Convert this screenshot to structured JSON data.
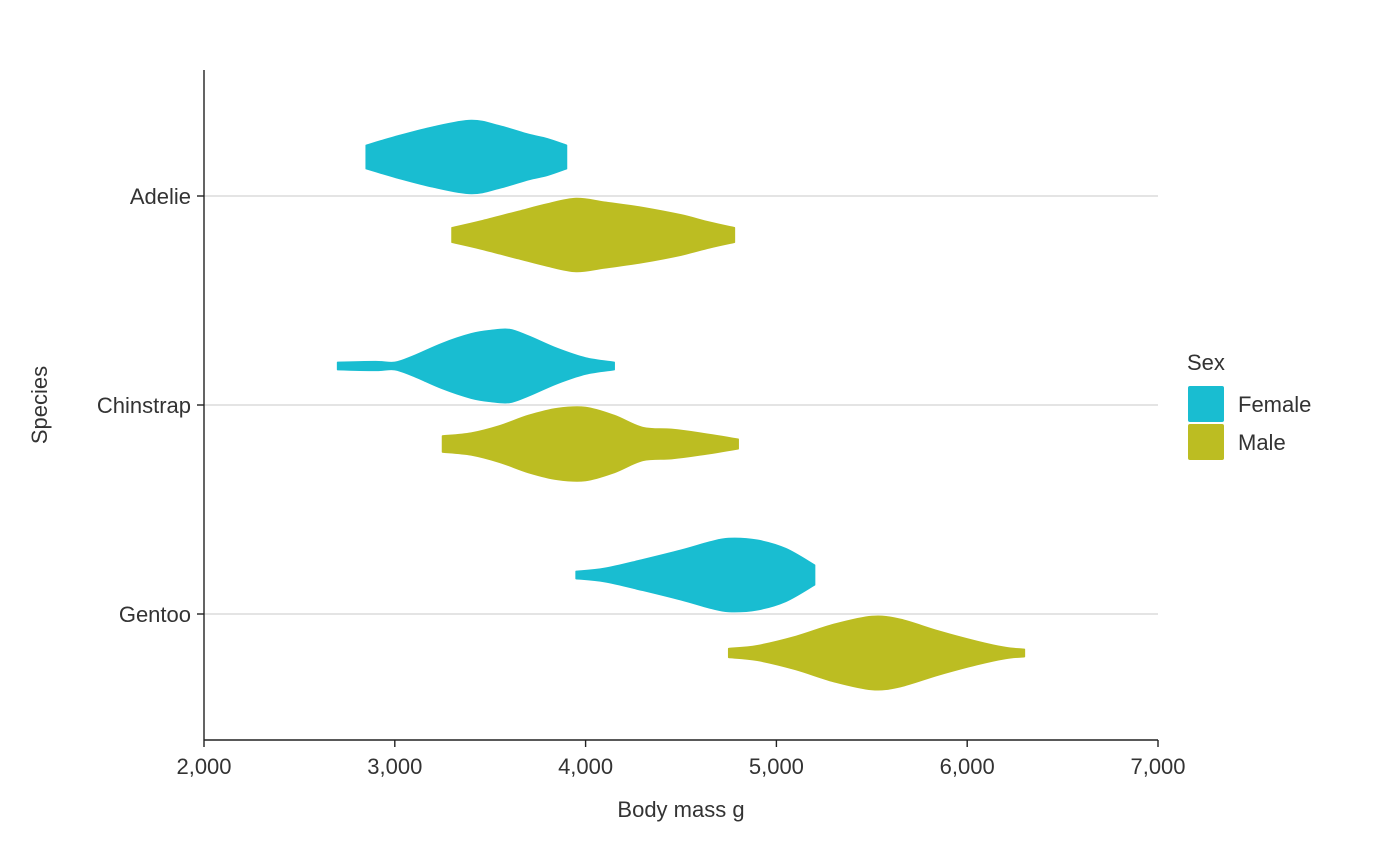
{
  "chart_data": {
    "type": "violin",
    "orientation": "horizontal",
    "xlabel": "Body mass g",
    "ylabel": "Species",
    "xlim": [
      2000,
      7000
    ],
    "x_ticks": [
      2000,
      3000,
      4000,
      5000,
      6000,
      7000
    ],
    "x_tick_labels": [
      "2,000",
      "3,000",
      "4,000",
      "5,000",
      "6,000",
      "7,000"
    ],
    "categories": [
      "Adelie",
      "Chinstrap",
      "Gentoo"
    ],
    "grid": "horizontal major gridlines",
    "legend": {
      "title": "Sex",
      "position": "right",
      "entries": [
        {
          "label": "Female",
          "color": "#19BDD1"
        },
        {
          "label": "Male",
          "color": "#BCBD22"
        }
      ]
    },
    "series": [
      {
        "name": "Female",
        "color": "#19BDD1",
        "violins": [
          {
            "category": "Adelie",
            "min": 2850,
            "max": 3900,
            "profile": [
              [
                2850,
                0.32
              ],
              [
                3000,
                0.55
              ],
              [
                3200,
                0.82
              ],
              [
                3400,
                1.0
              ],
              [
                3550,
                0.85
              ],
              [
                3700,
                0.62
              ],
              [
                3800,
                0.5
              ],
              [
                3900,
                0.32
              ]
            ]
          },
          {
            "category": "Chinstrap",
            "min": 2700,
            "max": 4150,
            "profile": [
              [
                2700,
                0.1
              ],
              [
                2900,
                0.12
              ],
              [
                3000,
                0.1
              ],
              [
                3100,
                0.28
              ],
              [
                3250,
                0.62
              ],
              [
                3400,
                0.88
              ],
              [
                3500,
                0.97
              ],
              [
                3600,
                1.0
              ],
              [
                3700,
                0.82
              ],
              [
                3850,
                0.48
              ],
              [
                4000,
                0.22
              ],
              [
                4150,
                0.1
              ]
            ]
          },
          {
            "category": "Gentoo",
            "min": 3950,
            "max": 5200,
            "profile": [
              [
                3950,
                0.1
              ],
              [
                4100,
                0.18
              ],
              [
                4300,
                0.42
              ],
              [
                4500,
                0.68
              ],
              [
                4650,
                0.9
              ],
              [
                4750,
                1.0
              ],
              [
                4900,
                0.95
              ],
              [
                5050,
                0.72
              ],
              [
                5200,
                0.27
              ]
            ]
          }
        ]
      },
      {
        "name": "Male",
        "color": "#BCBD22",
        "violins": [
          {
            "category": "Adelie",
            "min": 3300,
            "max": 4780,
            "profile": [
              [
                3300,
                0.2
              ],
              [
                3450,
                0.38
              ],
              [
                3650,
                0.65
              ],
              [
                3800,
                0.85
              ],
              [
                3950,
                1.0
              ],
              [
                4100,
                0.9
              ],
              [
                4300,
                0.75
              ],
              [
                4500,
                0.55
              ],
              [
                4650,
                0.35
              ],
              [
                4780,
                0.2
              ]
            ]
          },
          {
            "category": "Chinstrap",
            "min": 3250,
            "max": 4800,
            "profile": [
              [
                3250,
                0.22
              ],
              [
                3400,
                0.3
              ],
              [
                3550,
                0.5
              ],
              [
                3700,
                0.78
              ],
              [
                3850,
                0.97
              ],
              [
                4000,
                1.0
              ],
              [
                4150,
                0.78
              ],
              [
                4300,
                0.45
              ],
              [
                4450,
                0.4
              ],
              [
                4600,
                0.3
              ],
              [
                4800,
                0.13
              ]
            ]
          },
          {
            "category": "Gentoo",
            "min": 4750,
            "max": 6300,
            "profile": [
              [
                4750,
                0.12
              ],
              [
                4900,
                0.2
              ],
              [
                5100,
                0.45
              ],
              [
                5300,
                0.78
              ],
              [
                5500,
                1.0
              ],
              [
                5650,
                0.92
              ],
              [
                5850,
                0.6
              ],
              [
                6050,
                0.32
              ],
              [
                6200,
                0.15
              ],
              [
                6300,
                0.1
              ]
            ]
          }
        ]
      }
    ]
  }
}
